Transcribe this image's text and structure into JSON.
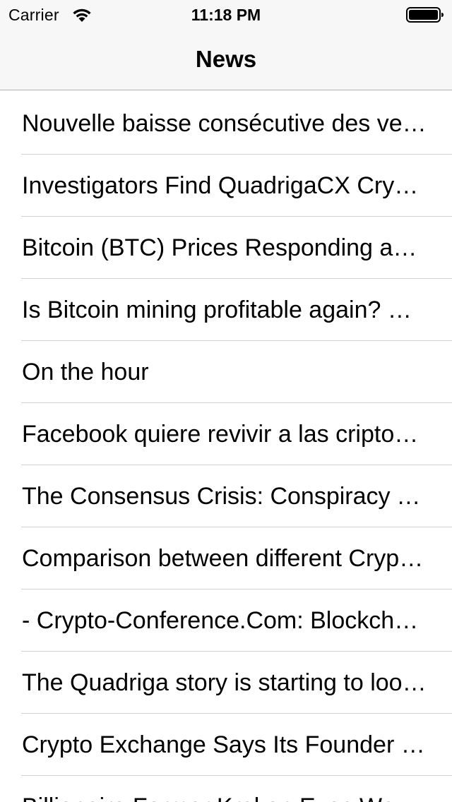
{
  "status_bar": {
    "carrier": "Carrier",
    "time": "11:18 PM"
  },
  "nav": {
    "title": "News"
  },
  "icons": {
    "wifi": "wifi-icon",
    "battery": "battery-icon"
  },
  "news": {
    "items": [
      {
        "title": "Nouvelle baisse consécutive des ventes de cartes graphiques"
      },
      {
        "title": "Investigators Find QuadrigaCX Crypto Exchange Funds Missing"
      },
      {
        "title": "Bitcoin (BTC) Prices Responding as Expected"
      },
      {
        "title": "Is Bitcoin mining profitable again? Research"
      },
      {
        "title": "On the hour"
      },
      {
        "title": "Facebook quiere revivir a las criptomonedas"
      },
      {
        "title": "The Consensus Crisis: Conspiracy Theories"
      },
      {
        "title": "Comparison between different Cryptocurrencies"
      },
      {
        "title": "- Crypto-Conference.Com: Blockchain Events"
      },
      {
        "title": "The Quadriga story is starting to look worse"
      },
      {
        "title": "Crypto Exchange Says Its Founder Died"
      },
      {
        "title": "Billionaire Former Kraken Exec Wealth"
      }
    ]
  }
}
